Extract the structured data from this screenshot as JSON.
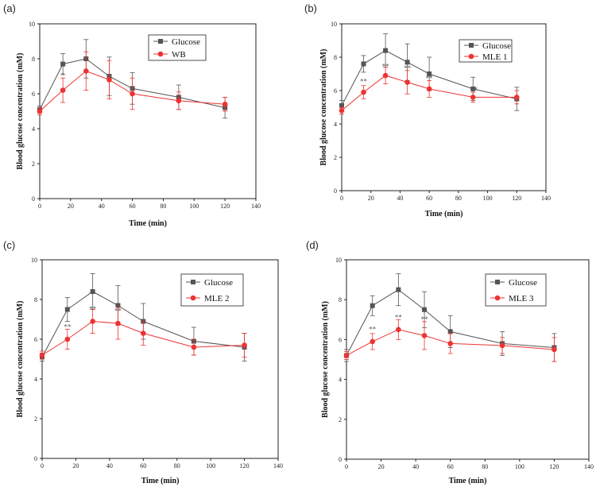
{
  "chart_data": [
    {
      "panel": "(a)",
      "type": "line",
      "xlabel": "Time (min)",
      "ylabel": "Blood glucose concentration (mM)",
      "xlim": [
        0,
        140
      ],
      "ylim": [
        0,
        10
      ],
      "xticks": [
        "0",
        "20",
        "40",
        "60",
        "80",
        "100",
        "120",
        "140"
      ],
      "yticks": [
        "0",
        "2",
        "4",
        "6",
        "8",
        "10"
      ],
      "x": [
        0,
        15,
        30,
        45,
        60,
        90,
        120
      ],
      "series": [
        {
          "name": "Glucose",
          "color": "#555555",
          "marker": "square",
          "values": [
            5.1,
            7.7,
            8.0,
            7.0,
            6.3,
            5.8,
            5.2
          ],
          "errors": [
            0.2,
            0.6,
            1.1,
            1.1,
            0.9,
            0.7,
            0.6
          ]
        },
        {
          "name": "WB",
          "color": "#ee3333",
          "marker": "circle",
          "values": [
            5.0,
            6.2,
            7.3,
            6.8,
            6.0,
            5.6,
            5.4
          ],
          "errors": [
            0.2,
            0.7,
            1.1,
            1.1,
            0.9,
            0.5,
            0.4
          ]
        }
      ],
      "annotations": [
        {
          "x": 15,
          "y": 6.9,
          "text": "*"
        }
      ],
      "legend": "top-right"
    },
    {
      "panel": "(b)",
      "type": "line",
      "xlabel": "Time (min)",
      "ylabel": "Blood glucose concentration (mM)",
      "xlim": [
        0,
        140
      ],
      "ylim": [
        0,
        10
      ],
      "xticks": [
        "0",
        "20",
        "40",
        "60",
        "80",
        "100",
        "120",
        "140"
      ],
      "yticks": [
        "0",
        "2",
        "4",
        "6",
        "8",
        "10"
      ],
      "x": [
        0,
        15,
        30,
        45,
        60,
        90,
        120
      ],
      "series": [
        {
          "name": "Glucose",
          "color": "#555555",
          "marker": "square",
          "values": [
            5.1,
            7.6,
            8.4,
            7.7,
            7.0,
            6.1,
            5.5
          ],
          "errors": [
            0.3,
            0.5,
            1.0,
            1.1,
            1.0,
            0.7,
            0.7
          ]
        },
        {
          "name": "MLE 1",
          "color": "#ee3333",
          "marker": "circle",
          "values": [
            4.8,
            5.9,
            6.9,
            6.5,
            6.1,
            5.6,
            5.6
          ],
          "errors": [
            0.2,
            0.4,
            0.5,
            0.7,
            0.5,
            0.3,
            0.4
          ]
        }
      ],
      "annotations": [
        {
          "x": 15,
          "y": 6.4,
          "text": "**"
        },
        {
          "x": 30,
          "y": 7.3,
          "text": "**"
        },
        {
          "x": 45,
          "y": 7.2,
          "text": "**"
        },
        {
          "x": 60,
          "y": 6.6,
          "text": "**"
        },
        {
          "x": 92,
          "y": 5.9,
          "text": "*"
        }
      ],
      "legend": "top-right"
    },
    {
      "panel": "(c)",
      "type": "line",
      "xlabel": "Time (min)",
      "ylabel": "Blood glucose concentration (mM)",
      "xlim": [
        0,
        140
      ],
      "ylim": [
        0,
        10
      ],
      "xticks": [
        "0",
        "20",
        "40",
        "60",
        "80",
        "100",
        "120",
        "140"
      ],
      "yticks": [
        "0",
        "2",
        "4",
        "6",
        "8",
        "10"
      ],
      "x": [
        0,
        15,
        30,
        45,
        60,
        90,
        120
      ],
      "series": [
        {
          "name": "Glucose",
          "color": "#555555",
          "marker": "square",
          "values": [
            5.1,
            7.5,
            8.4,
            7.7,
            6.9,
            5.9,
            5.6
          ],
          "errors": [
            0.2,
            0.6,
            0.9,
            1.0,
            0.9,
            0.7,
            0.7
          ]
        },
        {
          "name": "MLE 2",
          "color": "#ee3333",
          "marker": "circle",
          "values": [
            5.2,
            6.0,
            6.9,
            6.8,
            6.3,
            5.6,
            5.7
          ],
          "errors": [
            0.2,
            0.5,
            0.6,
            0.8,
            0.6,
            0.4,
            0.6
          ]
        }
      ],
      "annotations": [
        {
          "x": 15,
          "y": 6.5,
          "text": "**"
        },
        {
          "x": 30,
          "y": 7.4,
          "text": "**"
        },
        {
          "x": 45,
          "y": 7.3,
          "text": "**"
        }
      ],
      "legend": "top-right"
    },
    {
      "panel": "(d)",
      "type": "line",
      "xlabel": "Time (min)",
      "ylabel": "Blood glucose concentration (mM)",
      "xlim": [
        0,
        140
      ],
      "ylim": [
        0,
        10
      ],
      "xticks": [
        "0",
        "20",
        "40",
        "60",
        "80",
        "100",
        "120",
        "140"
      ],
      "yticks": [
        "0",
        "2",
        "4",
        "6",
        "8",
        "10"
      ],
      "x": [
        0,
        15,
        30,
        45,
        60,
        90,
        120
      ],
      "series": [
        {
          "name": "Glucose",
          "color": "#555555",
          "marker": "square",
          "values": [
            5.2,
            7.7,
            8.5,
            7.5,
            6.4,
            5.8,
            5.6
          ],
          "errors": [
            0.3,
            0.5,
            0.8,
            0.9,
            0.8,
            0.6,
            0.7
          ]
        },
        {
          "name": "MLE 3",
          "color": "#ee3333",
          "marker": "circle",
          "values": [
            5.2,
            5.9,
            6.5,
            6.2,
            5.8,
            5.7,
            5.5
          ],
          "errors": [
            0.2,
            0.4,
            0.5,
            0.7,
            0.5,
            0.4,
            0.6
          ]
        }
      ],
      "annotations": [
        {
          "x": 15,
          "y": 6.4,
          "text": "**"
        },
        {
          "x": 30,
          "y": 7.0,
          "text": "**"
        },
        {
          "x": 45,
          "y": 6.9,
          "text": "**"
        },
        {
          "x": 60,
          "y": 6.2,
          "text": "*"
        }
      ],
      "legend": "top-right"
    }
  ]
}
